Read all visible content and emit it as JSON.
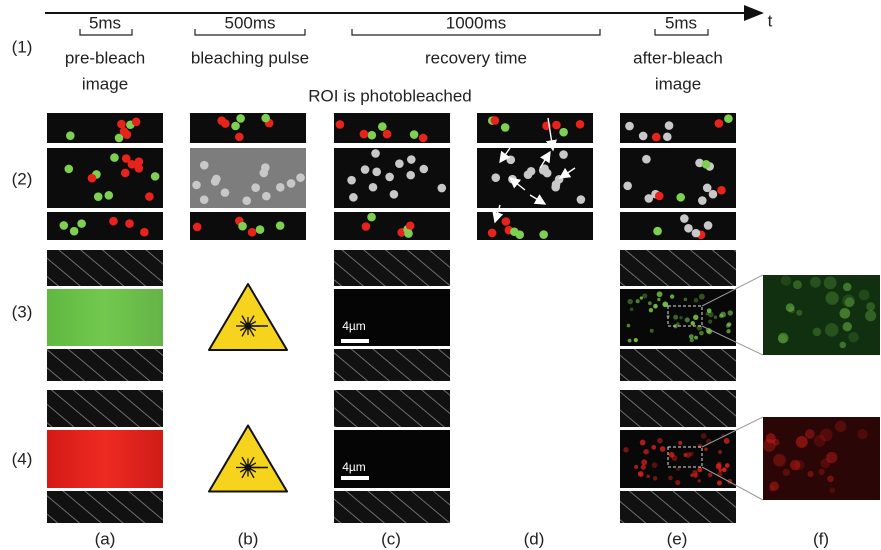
{
  "timeline": {
    "axis_label": "t",
    "intervals": [
      {
        "duration": "5ms",
        "label": [
          "pre-bleach",
          "image"
        ]
      },
      {
        "duration": "500ms",
        "label": [
          "bleaching pulse"
        ]
      },
      {
        "duration": "1000ms",
        "label": [
          "recovery time"
        ]
      },
      {
        "duration": "5ms",
        "label": [
          "after-bleach",
          "image"
        ]
      }
    ]
  },
  "rows": [
    "(1)",
    "(2)",
    "(3)",
    "(4)"
  ],
  "roi_note": "ROI is photobleached",
  "scale_bars": [
    "4µm",
    "4µm"
  ],
  "columns": [
    "(a)",
    "(b)",
    "(c)",
    "(d)",
    "(e)",
    "(f)"
  ]
}
